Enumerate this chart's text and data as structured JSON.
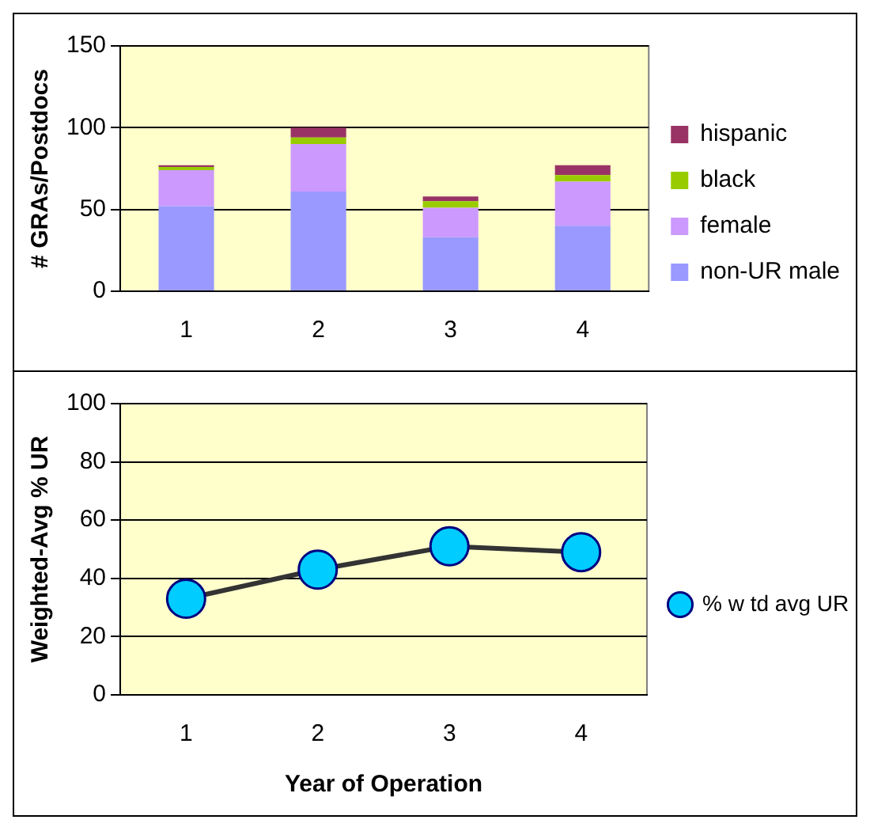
{
  "chart_data": [
    {
      "type": "bar",
      "stacked": true,
      "ylabel": "# GRAs/Postdocs",
      "categories": [
        "1",
        "2",
        "3",
        "4"
      ],
      "ylim": [
        0,
        150
      ],
      "yticks": [
        0,
        50,
        100,
        150
      ],
      "grid": "y",
      "legend": "right",
      "series": [
        {
          "name": "non-UR male",
          "color": "#9999ff",
          "values": [
            52,
            61,
            33,
            40
          ]
        },
        {
          "name": "female",
          "color": "#cc99ff",
          "values": [
            22,
            29,
            18,
            27
          ]
        },
        {
          "name": "black",
          "color": "#99cc00",
          "values": [
            2,
            4,
            4,
            4
          ]
        },
        {
          "name": "hispanic",
          "color": "#993366",
          "values": [
            1,
            6,
            3,
            6
          ]
        }
      ]
    },
    {
      "type": "line",
      "ylabel": "Weighted-Avg % UR",
      "xlabel": "Year of Operation",
      "categories": [
        "1",
        "2",
        "3",
        "4"
      ],
      "ylim": [
        0,
        100
      ],
      "yticks": [
        0,
        20,
        40,
        60,
        80,
        100
      ],
      "grid": "y",
      "legend": "right",
      "marker": "circle",
      "line_style": "solid",
      "series": [
        {
          "name": "% w td avg UR",
          "color": "#333333",
          "values": [
            33,
            43,
            51,
            49
          ]
        }
      ]
    }
  ]
}
